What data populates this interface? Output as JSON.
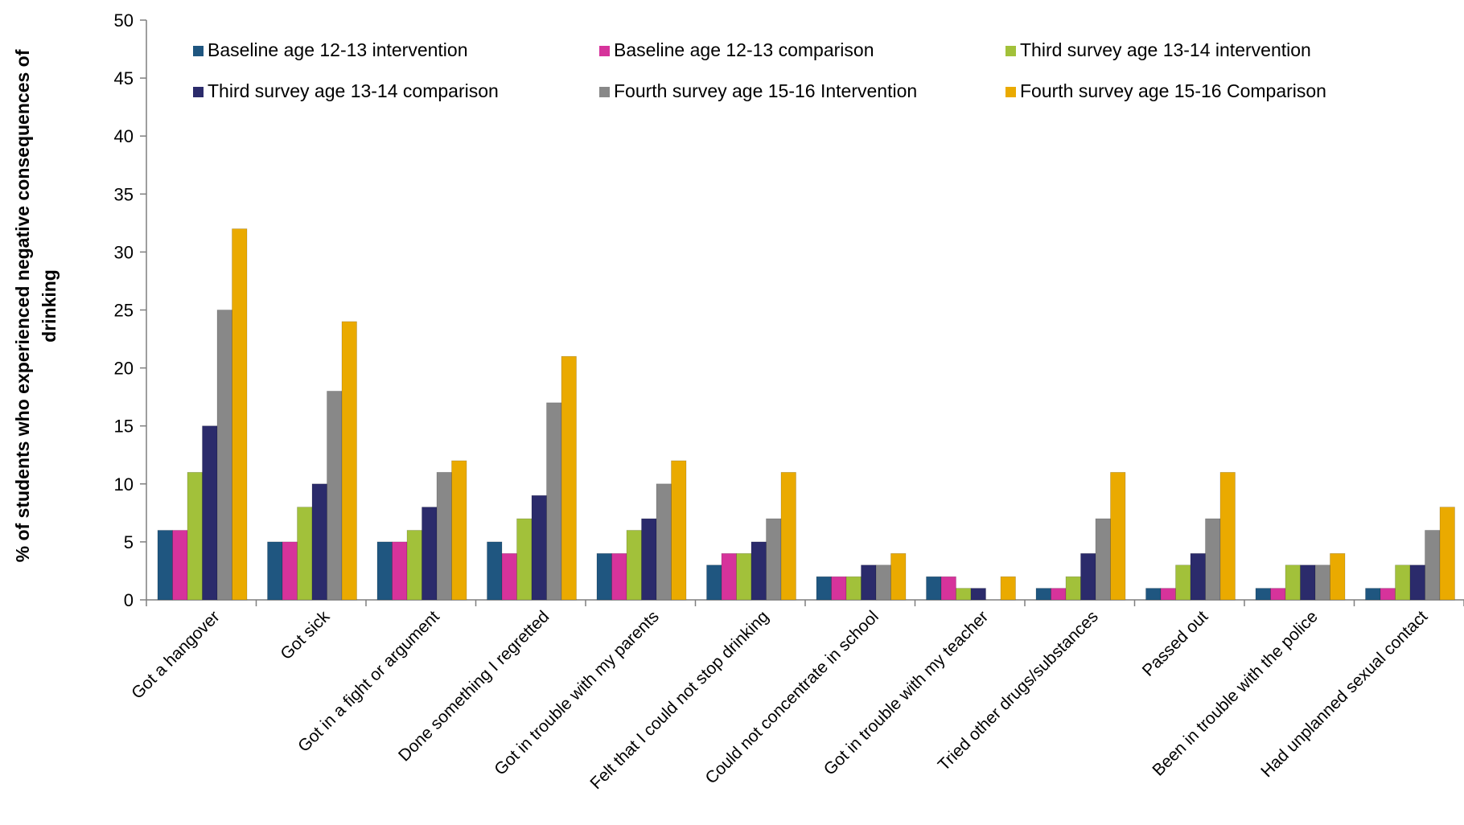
{
  "chart_data": {
    "type": "bar",
    "title": "",
    "xlabel": "",
    "ylabel_lines": [
      "% of students who experienced negative consequences of",
      "drinking"
    ],
    "ylim": [
      0,
      50
    ],
    "yticks": [
      "0",
      "5",
      "10",
      "15",
      "20",
      "25",
      "30",
      "35",
      "40",
      "45",
      "50"
    ],
    "grid": false,
    "legend_position": "top",
    "categories": [
      "Got a hangover",
      "Got sick",
      "Got in a fight or argument",
      "Done something I regretted",
      "Got in trouble with my parents",
      "Felt that I could not stop drinking",
      "Could not concentrate in school",
      "Got in trouble with my teacher",
      "Tried other drugs/substances",
      "Passed out",
      "Been in trouble with the police",
      "Had unplanned sexual contact"
    ],
    "series": [
      {
        "name": "Baseline age 12-13 intervention",
        "color": "#1f5680",
        "values": [
          6,
          5,
          5,
          5,
          4,
          3,
          2,
          2,
          1,
          1,
          1,
          1
        ]
      },
      {
        "name": "Baseline age 12-13 comparison",
        "color": "#d6339b",
        "values": [
          6,
          5,
          5,
          4,
          4,
          4,
          2,
          2,
          1,
          1,
          1,
          1
        ]
      },
      {
        "name": "Third survey age 13-14 intervention",
        "color": "#a2c13a",
        "values": [
          11,
          8,
          6,
          7,
          6,
          4,
          2,
          1,
          2,
          3,
          3,
          3
        ]
      },
      {
        "name": "Third survey age 13-14 comparison",
        "color": "#2b2b6b",
        "values": [
          15,
          10,
          8,
          9,
          7,
          5,
          3,
          1,
          4,
          4,
          3,
          3
        ]
      },
      {
        "name": "Fourth survey age 15-16 Intervention",
        "color": "#888888",
        "values": [
          25,
          18,
          11,
          17,
          10,
          7,
          3,
          0,
          7,
          7,
          3,
          6
        ]
      },
      {
        "name": "Fourth survey age 15-16 Comparison",
        "color": "#eaaa00",
        "values": [
          32,
          24,
          12,
          21,
          12,
          11,
          4,
          2,
          11,
          11,
          4,
          8
        ]
      }
    ]
  }
}
